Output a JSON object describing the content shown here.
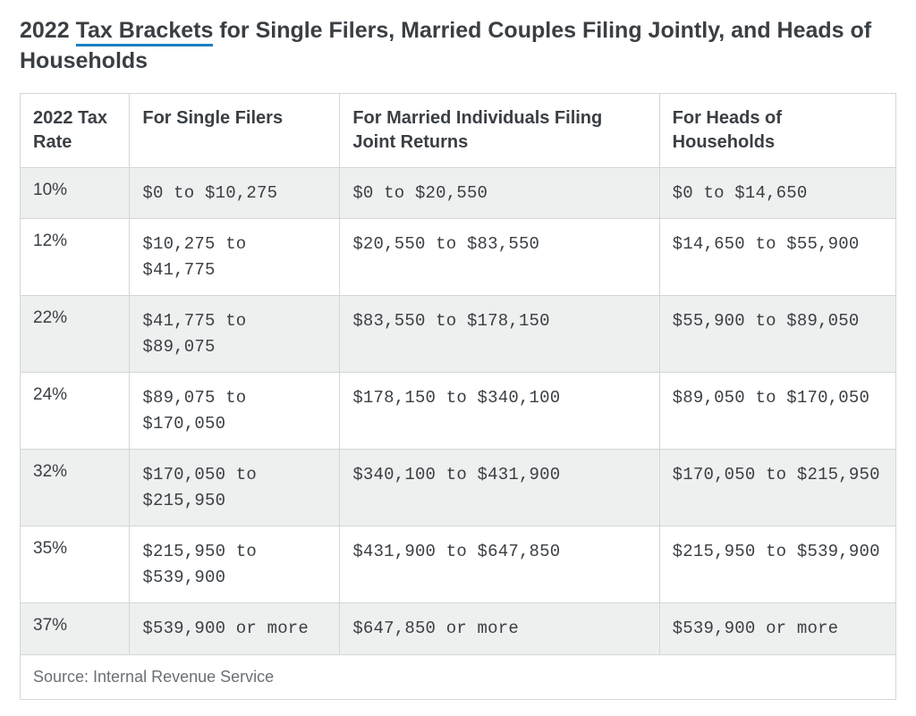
{
  "title": {
    "prefix": "2022 ",
    "link_text": "Tax Brackets",
    "suffix": " for Single Filers, Married Couples Filing Jointly, and Heads of Households",
    "link_underline_color": "#1b7fc1",
    "font_size_pt": 19,
    "color": "#3a3f44"
  },
  "table": {
    "type": "table",
    "border_color": "#d2d6da",
    "row_stripe_color": "#eeefef",
    "background_color": "#ffffff",
    "header_font_size_pt": 15,
    "data_font_family": "Courier New, monospace",
    "data_font_size_pt": 14,
    "columns": [
      {
        "key": "rate",
        "label": "2022 Tax Rate",
        "width_pct": 12.5
      },
      {
        "key": "single",
        "label": "For Single Filers",
        "width_pct": 24
      },
      {
        "key": "joint",
        "label": "For Married Individuals Filing Joint Returns",
        "width_pct": 36.5
      },
      {
        "key": "hoh",
        "label": "For Heads of Households",
        "width_pct": 27
      }
    ],
    "rows": [
      {
        "rate": "10%",
        "single": "$0 to $10,275",
        "joint": "$0 to $20,550",
        "hoh": "$0 to $14,650"
      },
      {
        "rate": "12%",
        "single": "$10,275 to $41,775",
        "joint": "$20,550 to $83,550",
        "hoh": "$14,650 to $55,900"
      },
      {
        "rate": "22%",
        "single": "$41,775 to $89,075",
        "joint": "$83,550 to $178,150",
        "hoh": "$55,900 to $89,050"
      },
      {
        "rate": "24%",
        "single": "$89,075 to $170,050",
        "joint": "$178,150 to $340,100",
        "hoh": "$89,050 to $170,050"
      },
      {
        "rate": "32%",
        "single": "$170,050 to $215,950",
        "joint": "$340,100 to $431,900",
        "hoh": "$170,050 to $215,950"
      },
      {
        "rate": "35%",
        "single": "$215,950 to $539,900",
        "joint": "$431,900 to $647,850",
        "hoh": "$215,950 to $539,900"
      },
      {
        "rate": "37%",
        "single": "$539,900 or more",
        "joint": "$647,850 or more",
        "hoh": "$539,900 or more"
      }
    ],
    "footer": "Source: Internal Revenue Service"
  }
}
